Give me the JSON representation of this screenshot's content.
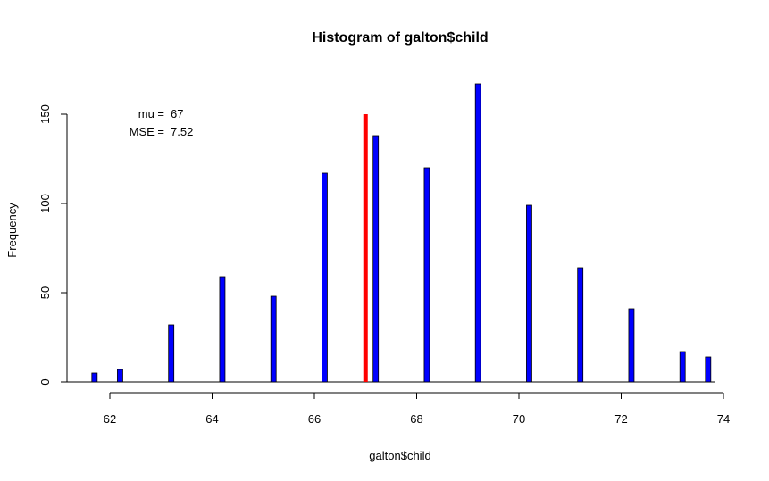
{
  "chart_data": {
    "type": "bar",
    "title": "Histogram of galton$child",
    "xlabel": "galton$child",
    "ylabel": "Frequency",
    "xlim": [
      62,
      74
    ],
    "ylim": [
      0,
      150
    ],
    "x_ticks": [
      "62",
      "64",
      "66",
      "68",
      "70",
      "72",
      "74"
    ],
    "y_ticks": [
      "0",
      "50",
      "100",
      "150"
    ],
    "grid": false,
    "bar_color": "#0000ff",
    "bars": [
      {
        "x": 61.7,
        "value": 5
      },
      {
        "x": 62.2,
        "value": 7
      },
      {
        "x": 63.2,
        "value": 32
      },
      {
        "x": 64.2,
        "value": 59
      },
      {
        "x": 65.2,
        "value": 48
      },
      {
        "x": 66.2,
        "value": 117
      },
      {
        "x": 67.2,
        "value": 138
      },
      {
        "x": 68.2,
        "value": 120
      },
      {
        "x": 69.2,
        "value": 167
      },
      {
        "x": 70.2,
        "value": 99
      },
      {
        "x": 71.2,
        "value": 64
      },
      {
        "x": 72.2,
        "value": 41
      },
      {
        "x": 73.2,
        "value": 17
      },
      {
        "x": 73.7,
        "value": 14
      }
    ],
    "mean_line": {
      "x": 67,
      "y_top": 150,
      "color": "#ff0000"
    },
    "annotation": {
      "mu_label": "mu =",
      "mu_value": "67",
      "mse_label": "MSE =",
      "mse_value": "7.52"
    }
  }
}
